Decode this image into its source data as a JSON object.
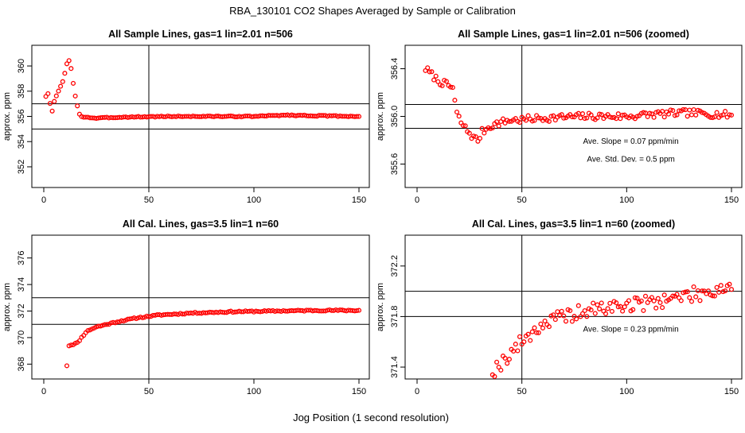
{
  "suptitle": "RBA_130101  CO2 Shapes Averaged by Sample or Calibration",
  "xlabel": "Jog Position (1 second resolution)",
  "colors": {
    "points": "#ff0000",
    "axes": "#000000",
    "background": "#ffffff"
  },
  "chart_data": [
    {
      "type": "scatter",
      "title": "All Sample Lines, gas=1 lin=2.01 n=506",
      "ylabel": "approx. ppm",
      "xlim": [
        0,
        150
      ],
      "ylim": [
        350.8,
        361.2
      ],
      "xticks": [
        0,
        50,
        100,
        150
      ],
      "xtick_labels": [
        "0",
        "50",
        "100",
        "150"
      ],
      "yticks": [
        352,
        354,
        356,
        358,
        360
      ],
      "ytick_labels": [
        "352",
        "354",
        "356",
        "358",
        "360"
      ],
      "vline": 50,
      "hlines": [
        355,
        357
      ],
      "annotations": [],
      "series": [
        {
          "x_start": 1,
          "x_end": 150,
          "anchors": [
            [
              1,
              357.6
            ],
            [
              2,
              357.8
            ],
            [
              3,
              357
            ],
            [
              4,
              356.4
            ],
            [
              5,
              357.2
            ],
            [
              6,
              357.6
            ],
            [
              7,
              358
            ],
            [
              8,
              358.4
            ],
            [
              9,
              358.8
            ],
            [
              10,
              359.4
            ],
            [
              11,
              360.2
            ],
            [
              12,
              360.4
            ],
            [
              13,
              359.8
            ],
            [
              14,
              358.6
            ],
            [
              15,
              357.6
            ],
            [
              16,
              356.8
            ],
            [
              17,
              356.2
            ],
            [
              18,
              356
            ],
            [
              19,
              355.95
            ],
            [
              20,
              355.95
            ],
            [
              25,
              355.85
            ],
            [
              30,
              355.9
            ],
            [
              40,
              355.95
            ],
            [
              60,
              356
            ],
            [
              100,
              356
            ],
            [
              115,
              356.1
            ],
            [
              130,
              356.05
            ],
            [
              150,
              356
            ]
          ],
          "noise": 0.04,
          "seed": 3
        }
      ]
    },
    {
      "type": "scatter",
      "title": "All Sample Lines, gas=1 lin=2.01 n=506 (zoomed)",
      "ylabel": "approx. ppm",
      "xlim": [
        0,
        150
      ],
      "ylim": [
        355.45,
        356.55
      ],
      "xticks": [
        0,
        50,
        100,
        150
      ],
      "xtick_labels": [
        "0",
        "50",
        "100",
        "150"
      ],
      "yticks": [
        355.6,
        356.0,
        356.4
      ],
      "ytick_labels": [
        "355.6",
        "356.0",
        "356.4"
      ],
      "vline": 50,
      "hlines": [
        355.9,
        356.1
      ],
      "annotations": [
        {
          "text": "Ave. Slope =  0.07  ppm/min",
          "x": 102,
          "y": 355.77
        },
        {
          "text": "Ave. Std. Dev. =  0.5  ppm",
          "x": 102,
          "y": 355.62
        }
      ],
      "series": [
        {
          "x_start": 4,
          "x_end": 150,
          "anchors": [
            [
              4,
              356.4
            ],
            [
              10,
              356.3
            ],
            [
              17,
              356.24
            ],
            [
              19,
              356.02
            ],
            [
              21,
              355.95
            ],
            [
              23,
              355.9
            ],
            [
              25,
              355.86
            ],
            [
              27,
              355.82
            ],
            [
              29,
              355.8
            ],
            [
              31,
              355.87
            ],
            [
              35,
              355.92
            ],
            [
              40,
              355.95
            ],
            [
              45,
              355.97
            ],
            [
              50,
              355.97
            ],
            [
              55,
              355.98
            ],
            [
              65,
              355.99
            ],
            [
              80,
              356
            ],
            [
              100,
              356
            ],
            [
              115,
              356.02
            ],
            [
              130,
              356.03
            ],
            [
              150,
              356.01
            ]
          ],
          "noise": 0.03,
          "seed": 7
        }
      ]
    },
    {
      "type": "scatter",
      "title": "All Cal. Lines, gas=3.5 lin=1 n=60",
      "ylabel": "approx. ppm",
      "xlim": [
        0,
        150
      ],
      "ylim": [
        367.3,
        377.3
      ],
      "xticks": [
        0,
        50,
        100,
        150
      ],
      "xtick_labels": [
        "0",
        "50",
        "100",
        "150"
      ],
      "yticks": [
        368,
        370,
        372,
        374,
        376
      ],
      "ytick_labels": [
        "368",
        "370",
        "372",
        "374",
        "376"
      ],
      "vline": 50,
      "hlines": [
        371,
        373
      ],
      "annotations": [],
      "series": [
        {
          "x_start": 11,
          "x_end": 150,
          "anchors": [
            [
              11,
              367.9
            ],
            [
              12,
              369.4
            ],
            [
              14,
              369.5
            ],
            [
              16,
              369.6
            ],
            [
              18,
              370
            ],
            [
              20,
              370.4
            ],
            [
              22,
              370.6
            ],
            [
              25,
              370.8
            ],
            [
              30,
              371
            ],
            [
              35,
              371.2
            ],
            [
              45,
              371.5
            ],
            [
              55,
              371.7
            ],
            [
              70,
              371.85
            ],
            [
              90,
              371.95
            ],
            [
              110,
              372
            ],
            [
              130,
              372.05
            ],
            [
              150,
              372.05
            ]
          ],
          "noise": 0.05,
          "seed": 11
        }
      ]
    },
    {
      "type": "scatter",
      "title": "All Cal. Lines, gas=3.5 lin=1 n=60 (zoomed)",
      "ylabel": "approx. ppm",
      "xlim": [
        0,
        150
      ],
      "ylim": [
        371.35,
        372.4
      ],
      "xticks": [
        0,
        50,
        100,
        150
      ],
      "xtick_labels": [
        "0",
        "50",
        "100",
        "150"
      ],
      "yticks": [
        371.4,
        371.8,
        372.2
      ],
      "ytick_labels": [
        "371.4",
        "371.8",
        "372.2"
      ],
      "vline": 50,
      "hlines": [
        371.8,
        372.0
      ],
      "annotations": [
        {
          "text": "Ave. Slope =  0.23  ppm/min",
          "x": 102,
          "y": 371.68
        }
      ],
      "series": [
        {
          "x_start": 36,
          "x_end": 150,
          "anchors": [
            [
              36,
              371.37
            ],
            [
              40,
              371.43
            ],
            [
              45,
              371.52
            ],
            [
              50,
              371.6
            ],
            [
              55,
              371.68
            ],
            [
              60,
              371.74
            ],
            [
              70,
              371.8
            ],
            [
              80,
              371.84
            ],
            [
              90,
              371.87
            ],
            [
              100,
              371.89
            ],
            [
              110,
              371.91
            ],
            [
              120,
              371.94
            ],
            [
              130,
              371.97
            ],
            [
              140,
              372
            ],
            [
              150,
              372.05
            ]
          ],
          "noise": 0.06,
          "seed": 19
        }
      ]
    }
  ]
}
